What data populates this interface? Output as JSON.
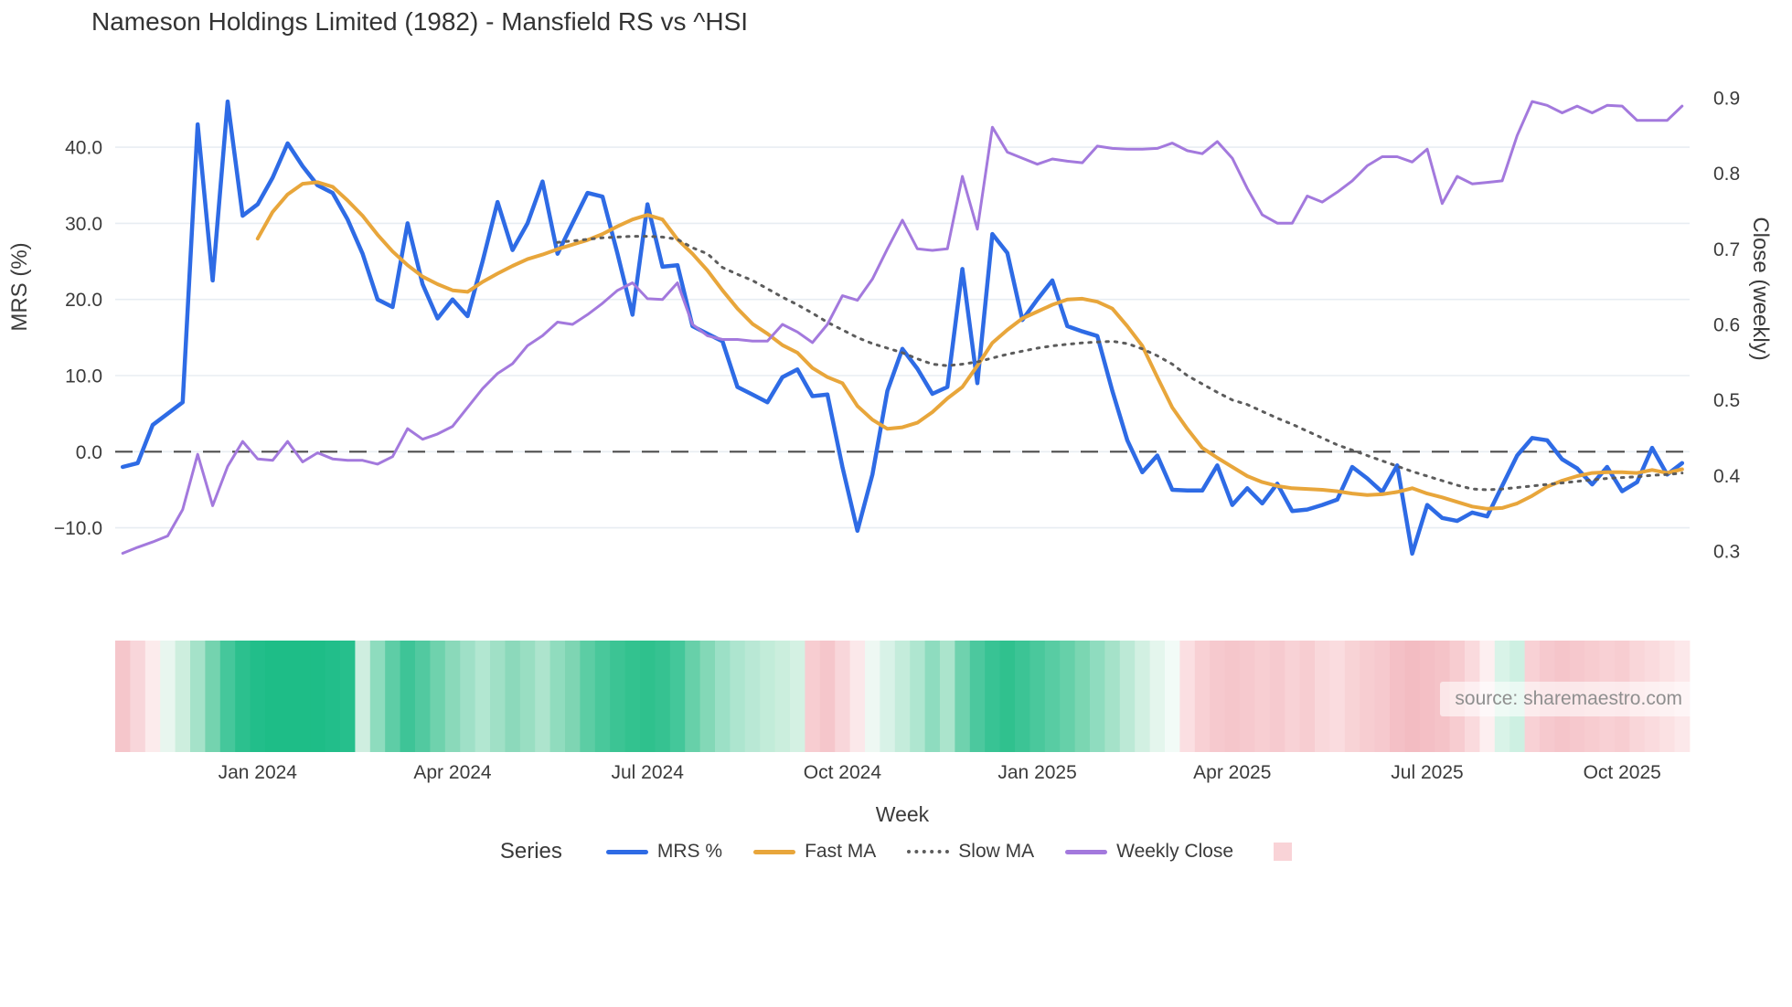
{
  "title": "Nameson Holdings Limited (1982) - Mansfield RS vs ^HSI",
  "source": "source: sharemaestro.com",
  "axes": {
    "left": {
      "label": "MRS (%)",
      "ticks": [
        {
          "label": "40.0",
          "value": 40
        },
        {
          "label": "30.0",
          "value": 30
        },
        {
          "label": "20.0",
          "value": 20
        },
        {
          "label": "10.0",
          "value": 10
        },
        {
          "label": "0.0",
          "value": 0
        },
        {
          "label": "−10.0",
          "value": -10
        }
      ]
    },
    "right": {
      "label": "Close (weekly)",
      "ticks": [
        {
          "label": "0.9",
          "value": 0.9
        },
        {
          "label": "0.8",
          "value": 0.8
        },
        {
          "label": "0.7",
          "value": 0.7
        },
        {
          "label": "0.6",
          "value": 0.6
        },
        {
          "label": "0.5",
          "value": 0.5
        },
        {
          "label": "0.4",
          "value": 0.4
        },
        {
          "label": "0.3",
          "value": 0.3
        }
      ]
    },
    "x": {
      "label": "Week",
      "ticks": [
        {
          "label": "Jan 2024",
          "week": 9
        },
        {
          "label": "Apr 2024",
          "week": 22
        },
        {
          "label": "Jul 2024",
          "week": 35
        },
        {
          "label": "Oct 2024",
          "week": 48
        },
        {
          "label": "Jan 2025",
          "week": 61
        },
        {
          "label": "Apr 2025",
          "week": 74
        },
        {
          "label": "Jul 2025",
          "week": 87
        },
        {
          "label": "Oct 2025",
          "week": 100
        }
      ]
    }
  },
  "legend": {
    "title": "Series",
    "items": [
      {
        "label": "MRS %",
        "color": "#2e6be5",
        "style": "solid"
      },
      {
        "label": "Fast MA",
        "color": "#e8a63b",
        "style": "solid"
      },
      {
        "label": "Slow MA",
        "color": "#5c5c5c",
        "style": "dotted"
      },
      {
        "label": "Weekly Close",
        "color": "#a379dd",
        "style": "solid"
      }
    ],
    "heatmap_swatch_color": "#f9d3d7"
  },
  "colors": {
    "grid": "#e8edf2",
    "zero_line": "#4d4d4d",
    "tick_text": "#3b3b3b"
  },
  "chart_data": {
    "type": "line",
    "title": "Nameson Holdings Limited (1982) - Mansfield RS vs ^HSI",
    "xlabel": "Week",
    "ylabel_left": "MRS (%)",
    "ylabel_right": "Close (weekly)",
    "ylim_left": [
      -15,
      48
    ],
    "ylim_right": [
      0.28,
      0.92
    ],
    "n_weeks": 105,
    "start_week": "2023-10-30",
    "grid": true,
    "zero_line_value": 0,
    "series": [
      {
        "name": "MRS %",
        "axis": "left",
        "color": "#2e6be5",
        "width": 4.5,
        "dash": null,
        "values": [
          -2,
          -1.5,
          3.5,
          5,
          6.5,
          43,
          22.5,
          46,
          31,
          32.5,
          36,
          40.5,
          37.5,
          35,
          34,
          30.5,
          26,
          20,
          19,
          30,
          22,
          17.5,
          20,
          17.8,
          25,
          32.8,
          26.5,
          30,
          35.5,
          26,
          30,
          34,
          33.5,
          26,
          18,
          32.5,
          24.3,
          24.5,
          16.5,
          15.5,
          14.5,
          8.5,
          7.5,
          6.5,
          9.8,
          10.8,
          7.3,
          7.5,
          -2,
          -10.4,
          -3,
          8,
          13.5,
          10.9,
          7.6,
          8.5,
          24,
          9,
          28.6,
          26.1,
          17.3,
          20,
          22.5,
          16.5,
          15.8,
          15.2,
          8,
          1.5,
          -2.7,
          -0.5,
          -5,
          -5.1,
          -5.1,
          -1.8,
          -7,
          -4.8,
          -6.8,
          -4.2,
          -7.8,
          -7.6,
          -7,
          -6.3,
          -2,
          -3.5,
          -5.3,
          -1.8,
          -13.4,
          -7,
          -8.7,
          -9.1,
          -8,
          -8.5,
          -4.5,
          -0.5,
          1.8,
          1.5,
          -1,
          -2.2,
          -4.3,
          -2,
          -5.2,
          -4,
          0.5,
          -3,
          -1.5
        ]
      },
      {
        "name": "Fast MA",
        "axis": "left",
        "color": "#e8a63b",
        "width": 4,
        "dash": null,
        "values": [
          null,
          null,
          null,
          null,
          null,
          null,
          null,
          null,
          null,
          28,
          31.5,
          33.8,
          35.2,
          35.4,
          34.8,
          33,
          31,
          28.5,
          26.3,
          24.5,
          23,
          22,
          21.2,
          21,
          22.3,
          23.4,
          24.4,
          25.3,
          25.9,
          26.6,
          27.2,
          27.8,
          28.6,
          29.6,
          30.5,
          31.1,
          30.5,
          27.9,
          26,
          23.8,
          21.2,
          18.8,
          16.8,
          15.5,
          14,
          13,
          11,
          9.8,
          9,
          6,
          4.2,
          3,
          3.2,
          3.8,
          5.2,
          7,
          8.5,
          11.3,
          14.3,
          16,
          17.5,
          18.4,
          19.3,
          20,
          20.1,
          19.7,
          18.8,
          16.5,
          13.9,
          9.8,
          5.8,
          3,
          0.5,
          -0.8,
          -2,
          -3.2,
          -4,
          -4.5,
          -4.8,
          -4.9,
          -5,
          -5.2,
          -5.5,
          -5.7,
          -5.6,
          -5.3,
          -4.8,
          -5.5,
          -6,
          -6.6,
          -7.2,
          -7.5,
          -7.4,
          -6.8,
          -5.8,
          -4.6,
          -3.8,
          -3.2,
          -2.8,
          -2.7,
          -2.7,
          -2.8,
          -2.4,
          -2.8,
          -2.3
        ]
      },
      {
        "name": "Slow MA",
        "axis": "left",
        "color": "#5c5c5c",
        "width": 3,
        "dash": "2.5 7",
        "values": [
          null,
          null,
          null,
          null,
          null,
          null,
          null,
          null,
          null,
          null,
          null,
          null,
          null,
          null,
          null,
          null,
          null,
          null,
          null,
          null,
          null,
          null,
          null,
          null,
          null,
          null,
          null,
          null,
          null,
          27.5,
          27.7,
          27.9,
          28.1,
          28.2,
          28.3,
          28.3,
          28.2,
          27.9,
          26.8,
          26,
          24.2,
          23.3,
          22.5,
          21.4,
          20.3,
          19.3,
          18.2,
          17,
          16,
          15,
          14.2,
          13.6,
          13,
          12.2,
          11.5,
          11.3,
          11.5,
          11.8,
          12.3,
          12.8,
          13.2,
          13.6,
          13.9,
          14.1,
          14.3,
          14.4,
          14.5,
          14.2,
          13.5,
          12.6,
          11.5,
          10,
          8.9,
          7.8,
          6.8,
          6.2,
          5.3,
          4.4,
          3.6,
          2.7,
          1.8,
          0.9,
          0.2,
          -0.5,
          -1.2,
          -1.9,
          -2.6,
          -3.2,
          -3.8,
          -4.4,
          -4.9,
          -5,
          -4.9,
          -4.7,
          -4.5,
          -4.3,
          -4.1,
          -3.9,
          -3.7,
          -3.5,
          -3.4,
          -3.3,
          -3.1,
          -3,
          -2.8
        ]
      },
      {
        "name": "Weekly Close",
        "axis": "right",
        "color": "#a379dd",
        "width": 3,
        "dash": null,
        "values": [
          0.297,
          0.305,
          0.312,
          0.32,
          0.355,
          0.428,
          0.36,
          0.412,
          0.445,
          0.422,
          0.42,
          0.445,
          0.418,
          0.43,
          0.422,
          0.42,
          0.42,
          0.415,
          0.425,
          0.462,
          0.448,
          0.455,
          0.465,
          0.49,
          0.515,
          0.535,
          0.548,
          0.572,
          0.585,
          0.603,
          0.6,
          0.613,
          0.628,
          0.645,
          0.655,
          0.634,
          0.633,
          0.655,
          0.6,
          0.585,
          0.58,
          0.58,
          0.578,
          0.578,
          0.6,
          0.59,
          0.576,
          0.6,
          0.638,
          0.632,
          0.66,
          0.7,
          0.738,
          0.7,
          0.698,
          0.7,
          0.796,
          0.726,
          0.861,
          0.828,
          0.82,
          0.812,
          0.819,
          0.816,
          0.814,
          0.836,
          0.833,
          0.832,
          0.832,
          0.833,
          0.84,
          0.83,
          0.826,
          0.842,
          0.82,
          0.78,
          0.745,
          0.734,
          0.734,
          0.77,
          0.762,
          0.775,
          0.79,
          0.81,
          0.822,
          0.822,
          0.815,
          0.832,
          0.76,
          0.796,
          0.786,
          0.788,
          0.79,
          0.85,
          0.895,
          0.89,
          0.88,
          0.889,
          0.88,
          0.89,
          0.889,
          0.87,
          0.87,
          0.87,
          0.889
        ]
      }
    ],
    "heatmap": {
      "colors": [
        "#f5c6cb",
        "#f8d6da",
        "#fcebec",
        "#e8f6ef",
        "#cdeede",
        "#a5e2c9",
        "#74d3af",
        "#45c79b",
        "#2cc08e",
        "#22be8a",
        "#1ebd87",
        "#1ebd87",
        "#1ebd87",
        "#1ebd87",
        "#22be8a",
        "#26bf8c",
        "#cfeee0",
        "#8edcbe",
        "#5ecda6",
        "#3ec497",
        "#52c9a0",
        "#6fd2ad",
        "#8ad9ba",
        "#9fe0c7",
        "#b2e7d1",
        "#a0e0c6",
        "#8cd9bb",
        "#99dec2",
        "#ade4cd",
        "#90dcbe",
        "#7ed5b3",
        "#5ccda4",
        "#49c89b",
        "#3cc494",
        "#33c28f",
        "#2fc18d",
        "#36c291",
        "#44c79a",
        "#67d0a9",
        "#83d8b7",
        "#9ce0c6",
        "#ade5cf",
        "#b9e8d5",
        "#c2ecd9",
        "#cbeedd",
        "#d4f1e3",
        "#f7cdd1",
        "#f5c6cb",
        "#f8d6da",
        "#fbe8ea",
        "#eef8f3",
        "#d8f2e7",
        "#c4ecdb",
        "#afe6d0",
        "#8edcbf",
        "#abe4cc",
        "#6fd2ae",
        "#4cc89e",
        "#38c394",
        "#30c18e",
        "#3cc495",
        "#4ac89c",
        "#58cca3",
        "#66d0a9",
        "#7bd6b2",
        "#8fdcbf",
        "#a5e2c9",
        "#bce9d6",
        "#d2f0e2",
        "#e4f6ed",
        "#f2fbf7",
        "#fbdfe2",
        "#f8d0d4",
        "#f6c9ce",
        "#f5c6cb",
        "#f6c9ce",
        "#f7ced2",
        "#f6cacf",
        "#f8d2d6",
        "#f7cdd1",
        "#f9d8db",
        "#fadcdf",
        "#f8d3d6",
        "#f7cdd1",
        "#f6c9ce",
        "#f4c0c6",
        "#f3bcc2",
        "#f4bfc5",
        "#f5c3c8",
        "#f7ccd0",
        "#fadadd",
        "#fdeff0",
        "#d9f3e8",
        "#cdf0e2",
        "#f8d1d5",
        "#f6c9ce",
        "#f5c5ca",
        "#f6c8cd",
        "#f7ccd0",
        "#f8d0d4",
        "#f7cdd1",
        "#f9d6d9",
        "#fadbde",
        "#fbe1e3",
        "#fce8ea"
      ]
    }
  }
}
